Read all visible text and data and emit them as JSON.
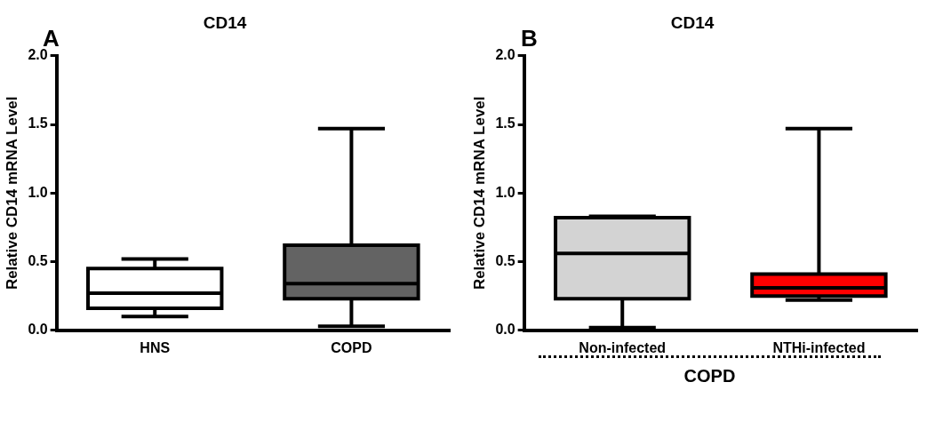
{
  "chart_data": [
    {
      "type": "box",
      "title": "CD14",
      "ylabel": "Relative CD14 mRNA Level",
      "categories": [
        "HNS",
        "COPD"
      ],
      "colors": [
        "#ffffff",
        "#636363"
      ],
      "boxes": [
        {
          "low": 0.1,
          "q1": 0.16,
          "median": 0.27,
          "q3": 0.45,
          "high": 0.52
        },
        {
          "low": 0.03,
          "q1": 0.23,
          "median": 0.34,
          "q3": 0.62,
          "high": 1.47
        }
      ],
      "ylim": [
        0,
        2
      ],
      "yticks": [
        {
          "value": 0,
          "label": "0.0"
        },
        {
          "value": 0.5,
          "label": "0.5"
        },
        {
          "value": 1,
          "label": "1.0"
        },
        {
          "value": 1.5,
          "label": "1.5"
        },
        {
          "value": 2,
          "label": "2.0"
        }
      ],
      "grid": false,
      "annotations": [
        "A"
      ]
    },
    {
      "type": "box",
      "title": "CD14",
      "ylabel": "Relative CD14 mRNA Level",
      "categories": [
        "Non-infected",
        "NTHi-infected"
      ],
      "colors": [
        "#d3d3d3",
        "#ff0000"
      ],
      "boxes": [
        {
          "low": 0.02,
          "q1": 0.23,
          "median": 0.56,
          "q3": 0.82,
          "high": 0.83
        },
        {
          "low": 0.22,
          "q1": 0.25,
          "median": 0.31,
          "q3": 0.41,
          "high": 1.47
        }
      ],
      "ylim": [
        0,
        2
      ],
      "yticks": [
        {
          "value": 0,
          "label": "0.0"
        },
        {
          "value": 0.5,
          "label": "0.5"
        },
        {
          "value": 1,
          "label": "1.0"
        },
        {
          "value": 1.5,
          "label": "1.5"
        },
        {
          "value": 2,
          "label": "2.0"
        }
      ],
      "grid": false,
      "annotations": [
        "B",
        "COPD"
      ]
    }
  ]
}
